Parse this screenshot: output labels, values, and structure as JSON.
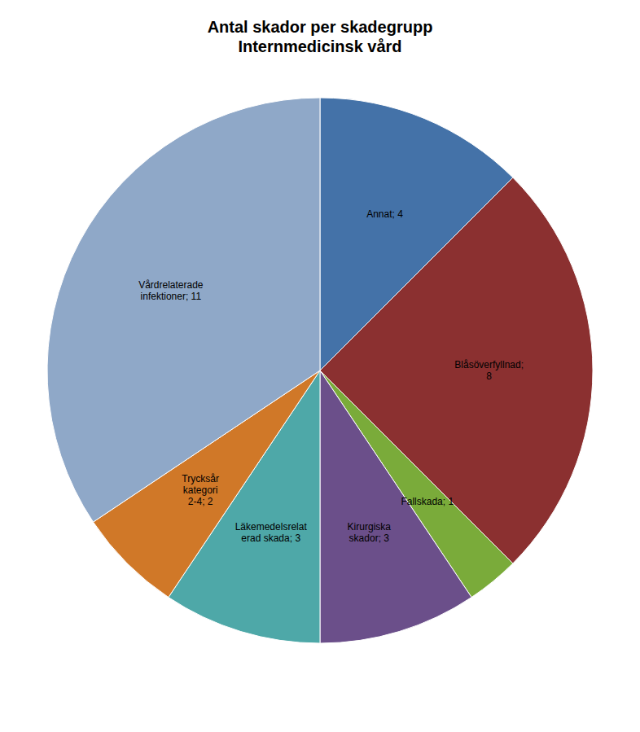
{
  "chart_data": {
    "type": "pie",
    "title": "Antal skador per skadegrupp\nInternmedicinsk vård",
    "categories": [
      "Annat; 4",
      "Blåsöverfyllnad;\n8",
      "Fallskada; 1",
      "Kirurgiska\nskador; 3",
      "Läkemedelsrelat\nerad skada; 3",
      "Trycksår\nkategori\n2-4; 2",
      "Vårdrelaterade\ninfektioner; 11"
    ],
    "values": [
      4,
      8,
      1,
      3,
      3,
      2,
      11
    ],
    "colors": [
      "#4472A8",
      "#8B3030",
      "#7AAB3A",
      "#6B4F8A",
      "#4EA8A8",
      "#D07828",
      "#8FA8C8"
    ]
  }
}
